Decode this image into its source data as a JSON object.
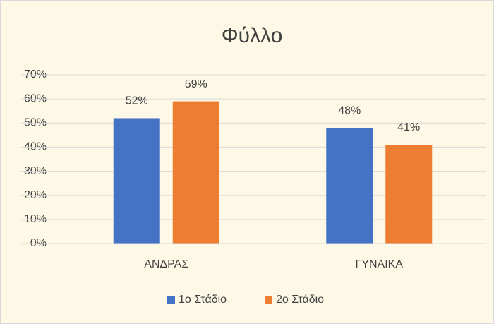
{
  "chart_data": {
    "type": "bar",
    "title": "Φύλλο",
    "categories": [
      "ΑΝΔΡΑΣ",
      "ΓΥΝΑΙΚΑ"
    ],
    "series": [
      {
        "name": "1ο Στάδιο",
        "color": "#4472c4",
        "values": [
          52,
          48
        ],
        "value_labels": [
          "52%",
          "48%"
        ]
      },
      {
        "name": "2ο Στάδιο",
        "color": "#ed7d31",
        "values": [
          59,
          41
        ],
        "value_labels": [
          "59%",
          "41%"
        ]
      }
    ],
    "ylim": [
      0,
      70
    ],
    "yticks": [
      {
        "value": 0,
        "label": "0%"
      },
      {
        "value": 10,
        "label": "10%"
      },
      {
        "value": 20,
        "label": "20%"
      },
      {
        "value": 30,
        "label": "30%"
      },
      {
        "value": 40,
        "label": "40%"
      },
      {
        "value": 50,
        "label": "50%"
      },
      {
        "value": 60,
        "label": "60%"
      },
      {
        "value": 70,
        "label": "70%"
      }
    ],
    "grid": true,
    "legend": "bottom"
  }
}
